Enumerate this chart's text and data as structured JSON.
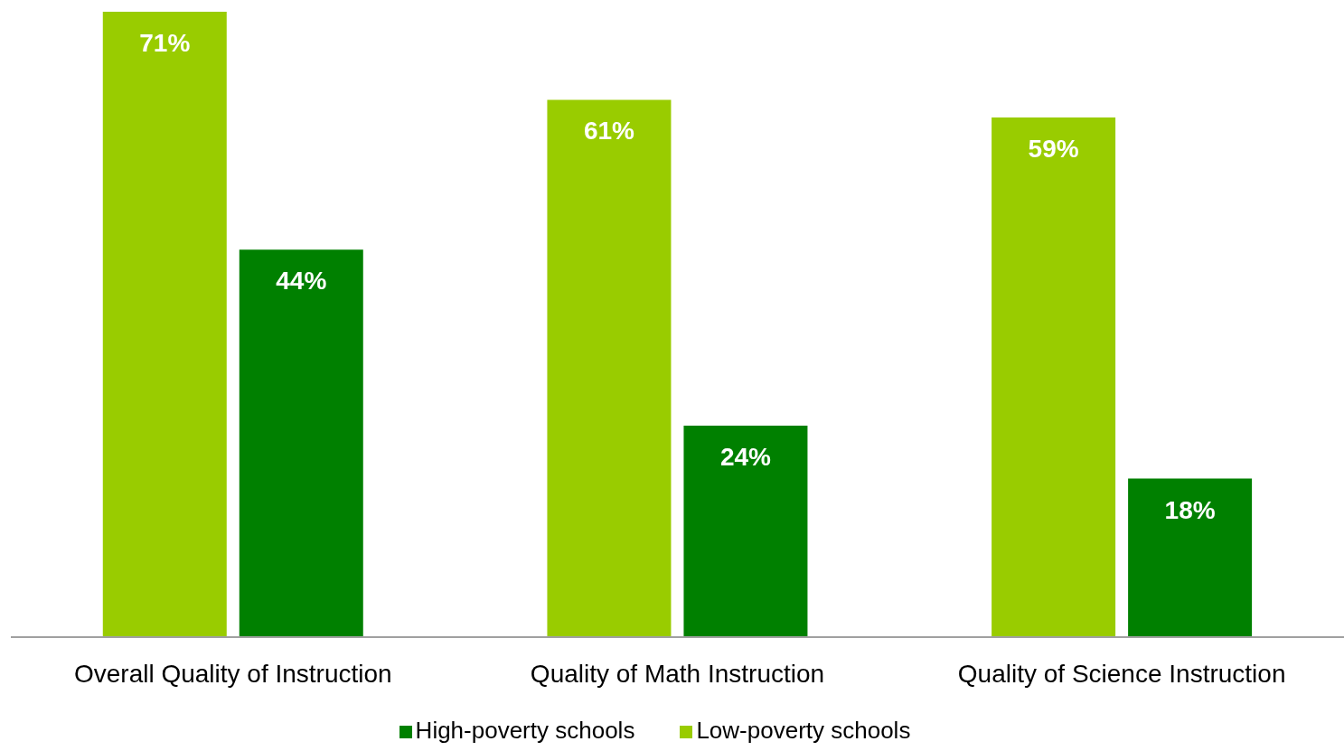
{
  "chart_data": {
    "type": "bar",
    "categories": [
      "Overall Quality of Instruction",
      "Quality of Math  Instruction",
      "Quality of Science Instruction"
    ],
    "series": [
      {
        "name": "Low-poverty schools",
        "color": "#99cc00",
        "values": [
          71,
          61,
          59
        ],
        "value_labels": [
          "71%",
          "61%",
          "59%"
        ]
      },
      {
        "name": "High-poverty schools",
        "color": "#008000",
        "values": [
          44,
          24,
          18
        ],
        "value_labels": [
          "44%",
          "24%",
          "18%"
        ]
      }
    ],
    "legend": "bottom",
    "grid": false
  }
}
